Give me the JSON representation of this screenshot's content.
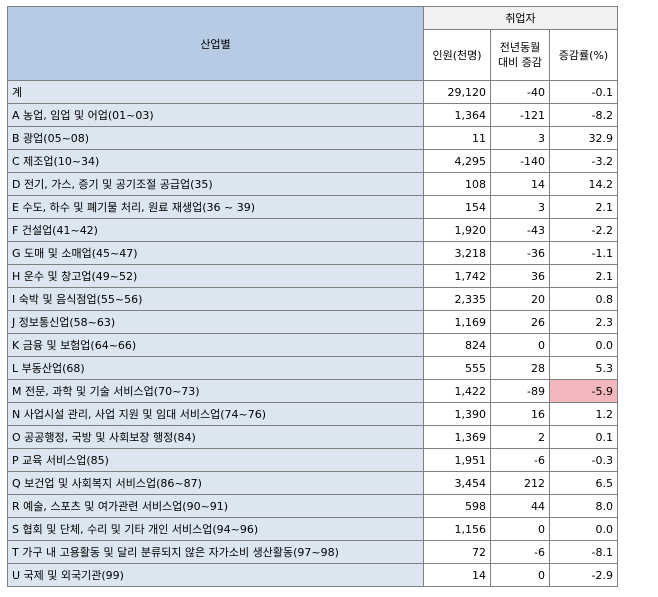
{
  "header": {
    "industry": "산업별",
    "employed": "취업자",
    "persons": "인원(천명)",
    "yoy_change_line1": "전년동월",
    "yoy_change_line2": "대비 증감",
    "change_rate": "증감률(%)"
  },
  "rows": [
    {
      "label": "계",
      "persons": "29,120",
      "change": "-40",
      "rate": "-0.1"
    },
    {
      "label": "A 농업, 임업 및 어업(01~03)",
      "persons": "1,364",
      "change": "-121",
      "rate": "-8.2"
    },
    {
      "label": "B 광업(05~08)",
      "persons": "11",
      "change": "3",
      "rate": "32.9"
    },
    {
      "label": "C 제조업(10~34)",
      "persons": "4,295",
      "change": "-140",
      "rate": "-3.2"
    },
    {
      "label": "D 전기, 가스, 증기 및 공기조절 공급업(35)",
      "persons": "108",
      "change": "14",
      "rate": "14.2"
    },
    {
      "label": "E 수도, 하수 및 폐기물 처리, 원료 재생업(36 ~ 39)",
      "persons": "154",
      "change": "3",
      "rate": "2.1"
    },
    {
      "label": "F 건설업(41~42)",
      "persons": "1,920",
      "change": "-43",
      "rate": "-2.2"
    },
    {
      "label": "G 도매 및 소매업(45~47)",
      "persons": "3,218",
      "change": "-36",
      "rate": "-1.1"
    },
    {
      "label": "H 운수 및 창고업(49~52)",
      "persons": "1,742",
      "change": "36",
      "rate": "2.1"
    },
    {
      "label": "I 숙박 및 음식점업(55~56)",
      "persons": "2,335",
      "change": "20",
      "rate": "0.8"
    },
    {
      "label": "J 정보통신업(58~63)",
      "persons": "1,169",
      "change": "26",
      "rate": "2.3"
    },
    {
      "label": "K 금융 및 보험업(64~66)",
      "persons": "824",
      "change": "0",
      "rate": "0.0"
    },
    {
      "label": "L 부동산업(68)",
      "persons": "555",
      "change": "28",
      "rate": "5.3"
    },
    {
      "label": "M 전문, 과학 및 기술 서비스업(70~73)",
      "persons": "1,422",
      "change": "-89",
      "rate": "-5.9",
      "highlight": true
    },
    {
      "label": "N 사업시설 관리, 사업 지원 및 임대 서비스업(74~76)",
      "persons": "1,390",
      "change": "16",
      "rate": "1.2"
    },
    {
      "label": "O 공공행정, 국방 및 사회보장 행정(84)",
      "persons": "1,369",
      "change": "2",
      "rate": "0.1"
    },
    {
      "label": "P 교육 서비스업(85)",
      "persons": "1,951",
      "change": "-6",
      "rate": "-0.3"
    },
    {
      "label": "Q 보건업 및 사회복지 서비스업(86~87)",
      "persons": "3,454",
      "change": "212",
      "rate": "6.5"
    },
    {
      "label": "R 예술, 스포츠 및 여가관련 서비스업(90~91)",
      "persons": "598",
      "change": "44",
      "rate": "8.0"
    },
    {
      "label": "S 협회 및 단체, 수리 및 기타 개인 서비스업(94~96)",
      "persons": "1,156",
      "change": "0",
      "rate": "0.0"
    },
    {
      "label": "T 가구 내 고용활동 및 달리 분류되지 않은 자가소비 생산활동(97~98)",
      "persons": "72",
      "change": "-6",
      "rate": "-8.1"
    },
    {
      "label": "U 국제 및 외국기관(99)",
      "persons": "14",
      "change": "0",
      "rate": "-2.9"
    }
  ],
  "colors": {
    "header_blue": "#b8cbe4",
    "label_blue": "#dce6f1",
    "highlight_pink": "#f2b8bd",
    "border": "#7f7f7f"
  }
}
